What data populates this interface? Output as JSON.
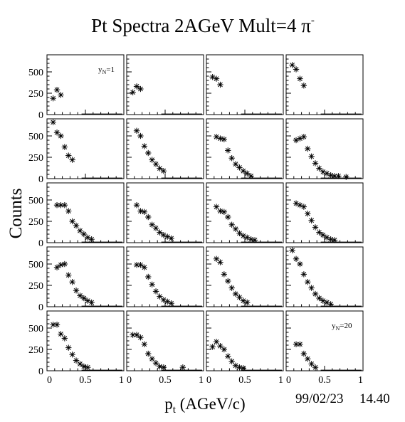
{
  "title": "Pt Spectra 2AGeV Mult=4 π",
  "title_superscript": "-",
  "y_axis_label": "Counts",
  "x_axis_label": "p",
  "x_axis_label_subscript": "t",
  "x_axis_unit": "(AGeV/c)",
  "footer_date": "99/02/23",
  "footer_time": "14.40",
  "chart_data": {
    "type": "scatter",
    "layout": {
      "rows": 5,
      "cols": 4
    },
    "xlim": [
      0,
      1
    ],
    "ylim": [
      0,
      700
    ],
    "x_ticks": [
      "0",
      "0.5",
      "1"
    ],
    "y_ticks": [
      "0",
      "250",
      "500"
    ],
    "marker": "asterisk",
    "panels": [
      {
        "label_main": "y",
        "label_sub": "N",
        "label_suffix": "=1",
        "points": [
          [
            0.08,
            190
          ],
          [
            0.13,
            290
          ],
          [
            0.18,
            230
          ]
        ]
      },
      {
        "points": [
          [
            0.08,
            260
          ],
          [
            0.13,
            330
          ],
          [
            0.18,
            300
          ]
        ]
      },
      {
        "points": [
          [
            0.08,
            440
          ],
          [
            0.13,
            420
          ],
          [
            0.18,
            350
          ]
        ]
      },
      {
        "points": [
          [
            0.08,
            580
          ],
          [
            0.13,
            530
          ],
          [
            0.18,
            420
          ],
          [
            0.23,
            340
          ]
        ]
      },
      {
        "points": [
          [
            0.08,
            660
          ],
          [
            0.13,
            540
          ],
          [
            0.18,
            500
          ],
          [
            0.23,
            370
          ],
          [
            0.28,
            270
          ],
          [
            0.33,
            220
          ]
        ]
      },
      {
        "points": [
          [
            0.13,
            560
          ],
          [
            0.18,
            500
          ],
          [
            0.23,
            380
          ],
          [
            0.28,
            300
          ],
          [
            0.33,
            220
          ],
          [
            0.38,
            170
          ],
          [
            0.43,
            120
          ],
          [
            0.48,
            90
          ]
        ]
      },
      {
        "points": [
          [
            0.13,
            490
          ],
          [
            0.18,
            470
          ],
          [
            0.23,
            460
          ],
          [
            0.28,
            330
          ],
          [
            0.33,
            240
          ],
          [
            0.38,
            170
          ],
          [
            0.43,
            130
          ],
          [
            0.48,
            90
          ],
          [
            0.53,
            60
          ],
          [
            0.58,
            30
          ]
        ]
      },
      {
        "points": [
          [
            0.13,
            450
          ],
          [
            0.18,
            470
          ],
          [
            0.23,
            490
          ],
          [
            0.28,
            350
          ],
          [
            0.33,
            260
          ],
          [
            0.38,
            180
          ],
          [
            0.43,
            120
          ],
          [
            0.48,
            80
          ],
          [
            0.53,
            60
          ],
          [
            0.58,
            40
          ],
          [
            0.63,
            30
          ],
          [
            0.68,
            30
          ],
          [
            0.78,
            20
          ]
        ]
      },
      {
        "points": [
          [
            0.13,
            440
          ],
          [
            0.18,
            440
          ],
          [
            0.23,
            440
          ],
          [
            0.28,
            370
          ],
          [
            0.33,
            250
          ],
          [
            0.38,
            200
          ],
          [
            0.43,
            140
          ],
          [
            0.48,
            100
          ],
          [
            0.53,
            60
          ],
          [
            0.58,
            40
          ]
        ]
      },
      {
        "points": [
          [
            0.13,
            440
          ],
          [
            0.18,
            370
          ],
          [
            0.23,
            360
          ],
          [
            0.28,
            300
          ],
          [
            0.33,
            210
          ],
          [
            0.38,
            170
          ],
          [
            0.43,
            120
          ],
          [
            0.48,
            90
          ],
          [
            0.53,
            70
          ],
          [
            0.58,
            50
          ]
        ]
      },
      {
        "points": [
          [
            0.13,
            420
          ],
          [
            0.18,
            370
          ],
          [
            0.23,
            360
          ],
          [
            0.28,
            300
          ],
          [
            0.33,
            210
          ],
          [
            0.38,
            160
          ],
          [
            0.43,
            110
          ],
          [
            0.48,
            80
          ],
          [
            0.53,
            60
          ],
          [
            0.58,
            40
          ],
          [
            0.63,
            30
          ]
        ]
      },
      {
        "points": [
          [
            0.13,
            460
          ],
          [
            0.18,
            440
          ],
          [
            0.23,
            420
          ],
          [
            0.28,
            340
          ],
          [
            0.33,
            260
          ],
          [
            0.38,
            180
          ],
          [
            0.43,
            120
          ],
          [
            0.48,
            90
          ],
          [
            0.53,
            60
          ],
          [
            0.58,
            40
          ],
          [
            0.63,
            30
          ]
        ]
      },
      {
        "points": [
          [
            0.13,
            460
          ],
          [
            0.18,
            490
          ],
          [
            0.23,
            500
          ],
          [
            0.28,
            370
          ],
          [
            0.33,
            290
          ],
          [
            0.38,
            190
          ],
          [
            0.43,
            130
          ],
          [
            0.48,
            100
          ],
          [
            0.53,
            70
          ],
          [
            0.58,
            50
          ]
        ]
      },
      {
        "points": [
          [
            0.13,
            490
          ],
          [
            0.18,
            490
          ],
          [
            0.23,
            460
          ],
          [
            0.28,
            350
          ],
          [
            0.33,
            260
          ],
          [
            0.38,
            180
          ],
          [
            0.43,
            120
          ],
          [
            0.48,
            80
          ],
          [
            0.53,
            60
          ],
          [
            0.58,
            40
          ]
        ]
      },
      {
        "points": [
          [
            0.13,
            560
          ],
          [
            0.18,
            520
          ],
          [
            0.23,
            380
          ],
          [
            0.28,
            300
          ],
          [
            0.33,
            220
          ],
          [
            0.38,
            150
          ],
          [
            0.43,
            110
          ],
          [
            0.48,
            70
          ],
          [
            0.53,
            50
          ]
        ]
      },
      {
        "points": [
          [
            0.08,
            660
          ],
          [
            0.13,
            560
          ],
          [
            0.18,
            500
          ],
          [
            0.23,
            380
          ],
          [
            0.28,
            290
          ],
          [
            0.33,
            220
          ],
          [
            0.38,
            150
          ],
          [
            0.43,
            100
          ],
          [
            0.48,
            70
          ],
          [
            0.53,
            50
          ],
          [
            0.58,
            30
          ]
        ]
      },
      {
        "points": [
          [
            0.08,
            540
          ],
          [
            0.13,
            540
          ],
          [
            0.18,
            430
          ],
          [
            0.23,
            380
          ],
          [
            0.28,
            270
          ],
          [
            0.33,
            190
          ],
          [
            0.38,
            120
          ],
          [
            0.43,
            80
          ],
          [
            0.48,
            50
          ],
          [
            0.53,
            40
          ]
        ]
      },
      {
        "points": [
          [
            0.08,
            420
          ],
          [
            0.13,
            420
          ],
          [
            0.18,
            390
          ],
          [
            0.23,
            310
          ],
          [
            0.28,
            200
          ],
          [
            0.33,
            140
          ],
          [
            0.38,
            90
          ],
          [
            0.43,
            50
          ],
          [
            0.48,
            40
          ],
          [
            0.73,
            40
          ]
        ]
      },
      {
        "points": [
          [
            0.08,
            280
          ],
          [
            0.13,
            340
          ],
          [
            0.18,
            290
          ],
          [
            0.23,
            250
          ],
          [
            0.28,
            170
          ],
          [
            0.33,
            110
          ],
          [
            0.38,
            60
          ],
          [
            0.43,
            40
          ],
          [
            0.48,
            30
          ]
        ]
      },
      {
        "label_main": "y",
        "label_sub": "N",
        "label_suffix": "=20",
        "points": [
          [
            0.13,
            310
          ],
          [
            0.18,
            310
          ],
          [
            0.23,
            200
          ],
          [
            0.28,
            140
          ],
          [
            0.33,
            80
          ],
          [
            0.38,
            40
          ]
        ]
      }
    ]
  }
}
